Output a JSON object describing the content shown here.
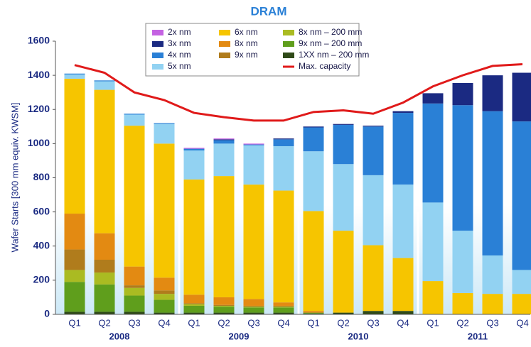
{
  "chart_data": {
    "type": "stacked_bar",
    "title": "DRAM",
    "y_label": "Wafer Starts [300 mm equiv. KWSM]",
    "categories": [
      "Q1",
      "Q2",
      "Q3",
      "Q4",
      "Q1",
      "Q2",
      "Q3",
      "Q4",
      "Q1",
      "Q2",
      "Q3",
      "Q4",
      "Q1",
      "Q2",
      "Q3",
      "Q4"
    ],
    "groups": [
      "2008",
      "2009",
      "2010",
      "2011"
    ],
    "ylim": [
      0,
      1600
    ],
    "yticks": [
      0,
      200,
      400,
      600,
      800,
      1000,
      1200,
      1400,
      1600
    ],
    "series": [
      {
        "name": "1XX nm – 200 mm",
        "color": "#2f4a18",
        "values": [
          15,
          15,
          15,
          10,
          10,
          10,
          10,
          10,
          5,
          10,
          20,
          20,
          0,
          0,
          0,
          0
        ]
      },
      {
        "name": "9x nm – 200 mm",
        "color": "#5f9e1c",
        "values": [
          175,
          160,
          95,
          75,
          40,
          35,
          30,
          30,
          5,
          0,
          0,
          0,
          0,
          0,
          0,
          0
        ]
      },
      {
        "name": "8x nm – 200 mm",
        "color": "#aabb22",
        "values": [
          70,
          70,
          45,
          35,
          10,
          5,
          5,
          5,
          0,
          0,
          0,
          0,
          0,
          0,
          0,
          0
        ]
      },
      {
        "name": "9x nm",
        "color": "#b07c1c",
        "values": [
          120,
          75,
          15,
          20,
          5,
          5,
          5,
          5,
          0,
          0,
          0,
          0,
          0,
          0,
          0,
          0
        ]
      },
      {
        "name": "8x nm",
        "color": "#e38a12",
        "values": [
          210,
          155,
          110,
          75,
          50,
          45,
          40,
          20,
          10,
          0,
          0,
          0,
          0,
          0,
          0,
          0
        ]
      },
      {
        "name": "6x nm",
        "color": "#f6c500",
        "values": [
          790,
          840,
          825,
          785,
          675,
          710,
          670,
          655,
          585,
          480,
          385,
          310,
          195,
          125,
          120,
          120
        ]
      },
      {
        "name": "5x nm",
        "color": "#92d2f2",
        "values": [
          25,
          50,
          65,
          115,
          170,
          190,
          230,
          260,
          350,
          390,
          410,
          430,
          460,
          365,
          225,
          140
        ]
      },
      {
        "name": "4x nm",
        "color": "#2a80d6",
        "values": [
          5,
          5,
          5,
          5,
          10,
          20,
          5,
          40,
          140,
          230,
          285,
          420,
          580,
          735,
          845,
          870
        ]
      },
      {
        "name": "3x nm",
        "color": "#1b2a82",
        "values": [
          0,
          0,
          0,
          0,
          0,
          5,
          0,
          5,
          5,
          5,
          5,
          10,
          60,
          130,
          210,
          285
        ]
      },
      {
        "name": "2x nm",
        "color": "#c462e2",
        "values": [
          0,
          0,
          0,
          0,
          5,
          5,
          5,
          0,
          0,
          0,
          0,
          0,
          0,
          0,
          0,
          0
        ]
      },
      {
        "name": "Max. capacity",
        "type": "line",
        "color": "#e01a1a",
        "values": [
          1460,
          1415,
          1300,
          1255,
          1180,
          1155,
          1135,
          1135,
          1185,
          1195,
          1175,
          1240,
          1335,
          1400,
          1455,
          1465
        ]
      }
    ]
  }
}
